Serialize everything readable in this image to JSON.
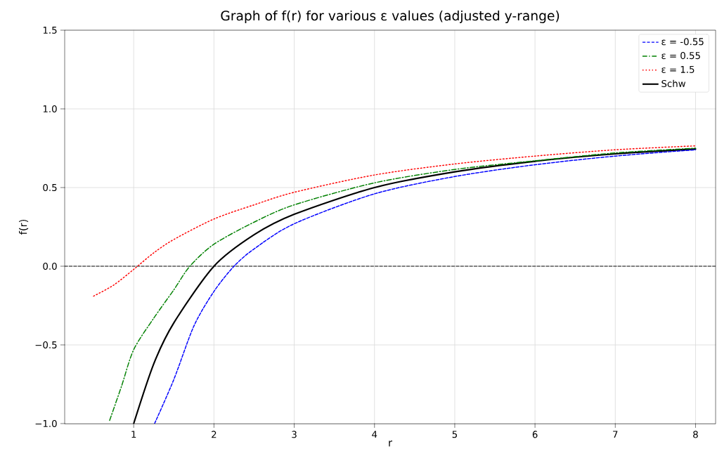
{
  "chart_data": {
    "type": "line",
    "title": "Graph of f(r) for various ε values (adjusted y-range)",
    "xlabel": "r",
    "ylabel": "f(r)",
    "xlim": [
      0.14,
      8.25
    ],
    "ylim": [
      -1,
      1.5
    ],
    "xticks": [
      1,
      2,
      3,
      4,
      5,
      6,
      7,
      8
    ],
    "yticks": [
      {
        "value": -1,
        "label": "−1.0"
      },
      {
        "value": -0.5,
        "label": "−0.5"
      },
      {
        "value": 0,
        "label": "0.0"
      },
      {
        "value": 0.5,
        "label": "0.5"
      },
      {
        "value": 1,
        "label": "1.0"
      },
      {
        "value": 1.5,
        "label": "1.5"
      }
    ],
    "grid": true,
    "legend": "top right",
    "ref_lines": [
      {
        "axis": "y",
        "value": 0,
        "color": "#000000",
        "line_style": "dashed"
      }
    ],
    "series": [
      {
        "name": "ε = -0.55",
        "color": "#0000ff",
        "line_style": "dashed",
        "x": [
          1.26,
          1.5,
          1.75,
          2,
          2.25,
          2.5,
          3,
          4,
          5,
          6,
          7,
          8
        ],
        "values": [
          -1,
          -0.72,
          -0.38,
          -0.16,
          0,
          0.11,
          0.27,
          0.46,
          0.57,
          0.645,
          0.7,
          0.74
        ]
      },
      {
        "name": "ε = 0.55",
        "color": "#008000",
        "line_style": "dashdot",
        "x": [
          0.7,
          0.85,
          1,
          1.25,
          1.5,
          1.7,
          2,
          2.5,
          3,
          4,
          5,
          6,
          7,
          8
        ],
        "values": [
          -0.98,
          -0.76,
          -0.53,
          -0.33,
          -0.15,
          0,
          0.14,
          0.28,
          0.39,
          0.53,
          0.615,
          0.67,
          0.72,
          0.75
        ]
      },
      {
        "name": "ε = 1.5",
        "color": "#ff0000",
        "line_style": "dotted",
        "x": [
          0.5,
          0.75,
          1,
          1.25,
          1.5,
          2,
          2.5,
          3,
          4,
          5,
          6,
          7,
          8
        ],
        "values": [
          -0.19,
          -0.12,
          -0.02,
          0.085,
          0.17,
          0.3,
          0.39,
          0.47,
          0.58,
          0.65,
          0.7,
          0.74,
          0.765
        ]
      },
      {
        "name": "Schw",
        "color": "#000000",
        "line_style": "solid",
        "x": [
          1,
          1.25,
          1.5,
          2,
          2.5,
          3,
          4,
          5,
          6,
          7,
          8
        ],
        "values": [
          -1,
          -0.62,
          -0.36,
          0,
          0.2,
          0.33,
          0.5,
          0.6,
          0.667,
          0.714,
          0.745
        ]
      }
    ]
  }
}
